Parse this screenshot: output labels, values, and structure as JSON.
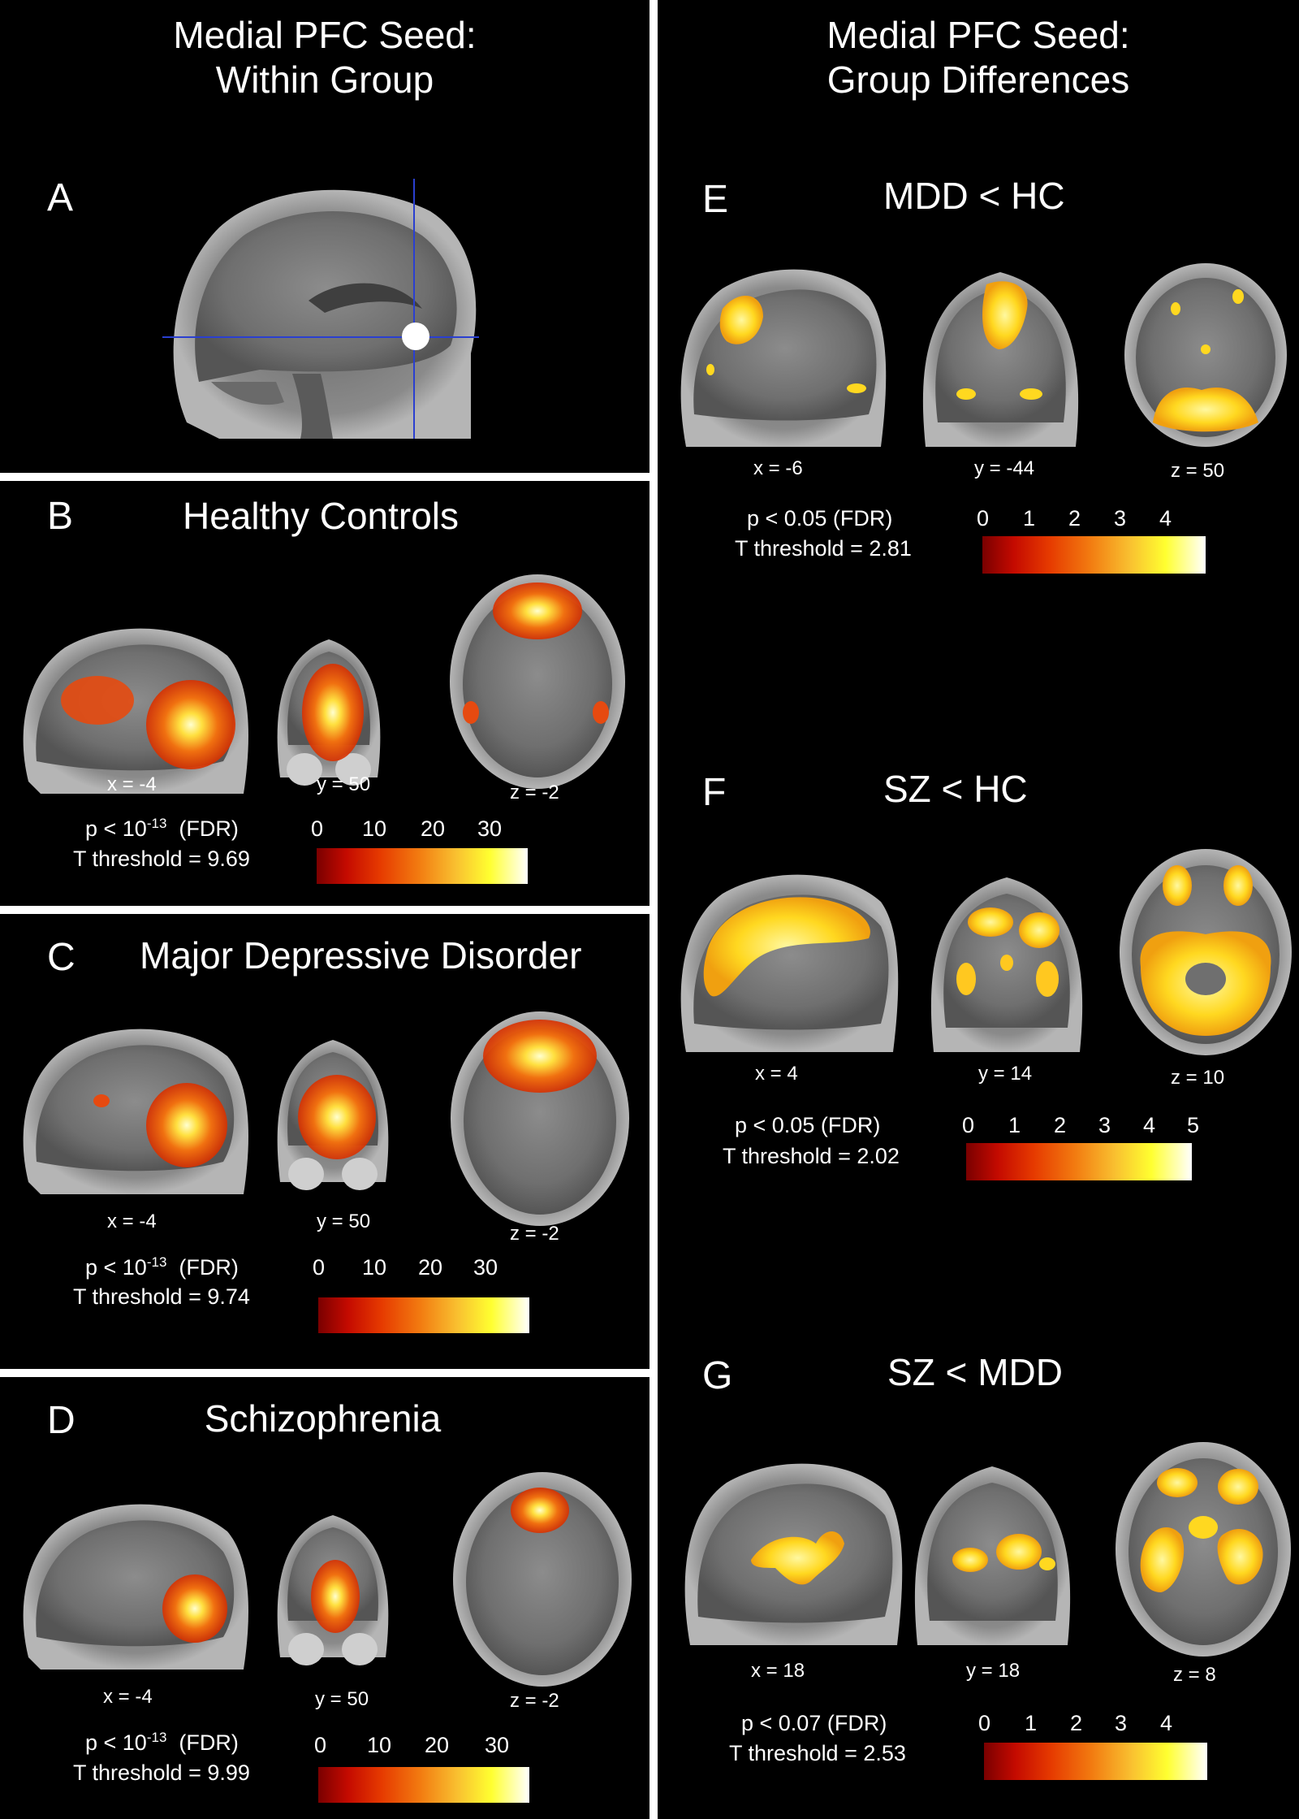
{
  "left": {
    "header": [
      "Medial PFC Seed:",
      "Within Group"
    ],
    "panelA": {
      "letter": "A"
    },
    "panels": [
      {
        "letter": "B",
        "title": "Healthy Controls",
        "coords": [
          "x = -4",
          "y = 50",
          "z = -2"
        ],
        "p_prefix": "p < 10",
        "p_exp": "-13",
        "p_suffix": "(FDR)",
        "threshold": "T threshold = 9.69",
        "ticks": [
          "0",
          "10",
          "20",
          "30"
        ]
      },
      {
        "letter": "C",
        "title": "Major Depressive Disorder",
        "coords": [
          "x = -4",
          "y = 50",
          "z = -2"
        ],
        "p_prefix": "p < 10",
        "p_exp": "-13",
        "p_suffix": "(FDR)",
        "threshold": "T threshold = 9.74",
        "ticks": [
          "0",
          "10",
          "20",
          "30"
        ]
      },
      {
        "letter": "D",
        "title": "Schizophrenia",
        "coords": [
          "x = -4",
          "y = 50",
          "z = -2"
        ],
        "p_prefix": "p < 10",
        "p_exp": "-13",
        "p_suffix": "(FDR)",
        "threshold": "T threshold = 9.99",
        "ticks": [
          "0",
          "10",
          "20",
          "30"
        ]
      }
    ]
  },
  "right": {
    "header": [
      "Medial PFC Seed:",
      "Group Differences"
    ],
    "panels": [
      {
        "letter": "E",
        "title": "MDD < HC",
        "coords": [
          "x = -6",
          "y = -44",
          "z = 50"
        ],
        "p": "p < 0.05  (FDR)",
        "threshold": "T threshold = 2.81",
        "ticks": [
          "0",
          "1",
          "2",
          "3",
          "4"
        ]
      },
      {
        "letter": "F",
        "title": "SZ < HC",
        "coords": [
          "x = 4",
          "y = 14",
          "z = 10"
        ],
        "p": "p < 0.05  (FDR)",
        "threshold": "T threshold = 2.02",
        "ticks": [
          "0",
          "1",
          "2",
          "3",
          "4",
          "5"
        ]
      },
      {
        "letter": "G",
        "title": "SZ < MDD",
        "coords": [
          "x = 18",
          "y = 18",
          "z = 8"
        ],
        "p": "p < 0.07  (FDR)",
        "threshold": "T threshold = 2.53",
        "ticks": [
          "0",
          "1",
          "2",
          "3",
          "4"
        ]
      }
    ]
  },
  "colors": {
    "background": "#000000",
    "divider": "#ffffff",
    "text": "#ffffff",
    "activation_hot": "#e84a10",
    "activation_yellow": "#ffe020",
    "seed": "#ffffff",
    "crosshair": "#2a3fd0"
  }
}
